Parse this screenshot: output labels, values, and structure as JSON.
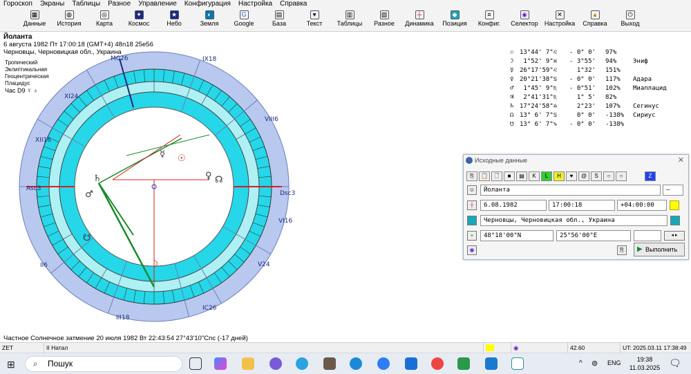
{
  "menu": [
    "Гороскоп",
    "Экраны",
    "Таблицы",
    "Разное",
    "Управление",
    "Конфигурация",
    "Настройка",
    "Справка"
  ],
  "toolbar": [
    "Данные",
    "История",
    "Карта",
    "Космос",
    "Небо",
    "Земля",
    "Google",
    "База",
    "Текст",
    "Таблицы",
    "Разное",
    "Динамика",
    "Позиция",
    "Конфиг.",
    "Селектор",
    "Настройка",
    "Справка",
    "Выход"
  ],
  "chart": {
    "name": "Йоланта",
    "datetime": "6 августа 1982  Пт  17:00:18 (GMT+4) 48n18  25e56",
    "place": "Черновцы, Черновицкая обл., Украина",
    "systems": [
      "Тропический",
      "Эклиптикальная",
      "Геоцентрическая",
      "Плацидус",
      "Час D9 ☿ ♁"
    ]
  },
  "wheel": {
    "houses": [
      {
        "label": "Asc3"
      },
      {
        "label": "XII16"
      },
      {
        "label": "XI24"
      },
      {
        "label": "MC26"
      },
      {
        "label": "IX18"
      },
      {
        "label": "VIII6"
      },
      {
        "label": "Dsc3"
      },
      {
        "label": "VI16"
      },
      {
        "label": "V24"
      },
      {
        "label": "IC26"
      },
      {
        "label": "III18"
      },
      {
        "label": "II6"
      }
    ]
  },
  "planets": [
    {
      "glyph": "☉",
      "pos": "13°44' 7\"♌",
      "speed": "- 0° 0'",
      "pct": "97%",
      "star": ""
    },
    {
      "glyph": "☽",
      "pos": " 1°52' 9\"♓",
      "speed": "- 3°55'",
      "pct": "94%",
      "star": "Эниф"
    },
    {
      "glyph": "☿",
      "pos": "26°17'59\"♌",
      "speed": "  1°32'",
      "pct": "151%",
      "star": ""
    },
    {
      "glyph": "♀",
      "pos": "20°21'38\"♋",
      "speed": "- 0° 0'",
      "pct": "117%",
      "star": "Адара"
    },
    {
      "glyph": "♂",
      "pos": " 1°45' 9\"♏",
      "speed": "- 0°51'",
      "pct": "102%",
      "star": "Миаплацид"
    },
    {
      "glyph": "♃",
      "pos": " 2°41'31\"♏",
      "speed": "  1° 5'",
      "pct": "82%",
      "star": ""
    },
    {
      "glyph": "♄",
      "pos": "17°24'58\"♎",
      "speed": "  2°23'",
      "pct": "107%",
      "star": "Сегинус"
    },
    {
      "glyph": "☊",
      "pos": "13° 6' 7\"♋",
      "speed": "  0° 0'",
      "pct": "-138%",
      "star": "Сириус"
    },
    {
      "glyph": "☋",
      "pos": "13° 6' 7\"♑",
      "speed": "- 0° 0'",
      "pct": "-138%",
      "star": ""
    }
  ],
  "dialog": {
    "title": "Исходные данные",
    "name_value": "Йоланта",
    "gender_value": "–",
    "date_value": "6.08.1982",
    "time_value": "17:00:18",
    "tz_value": "+04:00:00",
    "place_value": "Черновцы, Черновицкая обл., Украина",
    "lat_value": "48°18'00\"N",
    "lon_value": "25°56'00\"E",
    "run_label": "Выполнить"
  },
  "eclipse": "Частное Солнечное затмение 20 июля 1982 Вт 22:43:54 27°43'10\"Cnc (-17 дней)",
  "status": {
    "zet": "ZET",
    "natal": "II Натал",
    "value": "42.60",
    "ut": "UT: 2025.03.11 17:38:49"
  },
  "taskbar": {
    "search": "Пошук",
    "lang": "ENG",
    "time": "19:38",
    "date": "11.03.2025"
  }
}
